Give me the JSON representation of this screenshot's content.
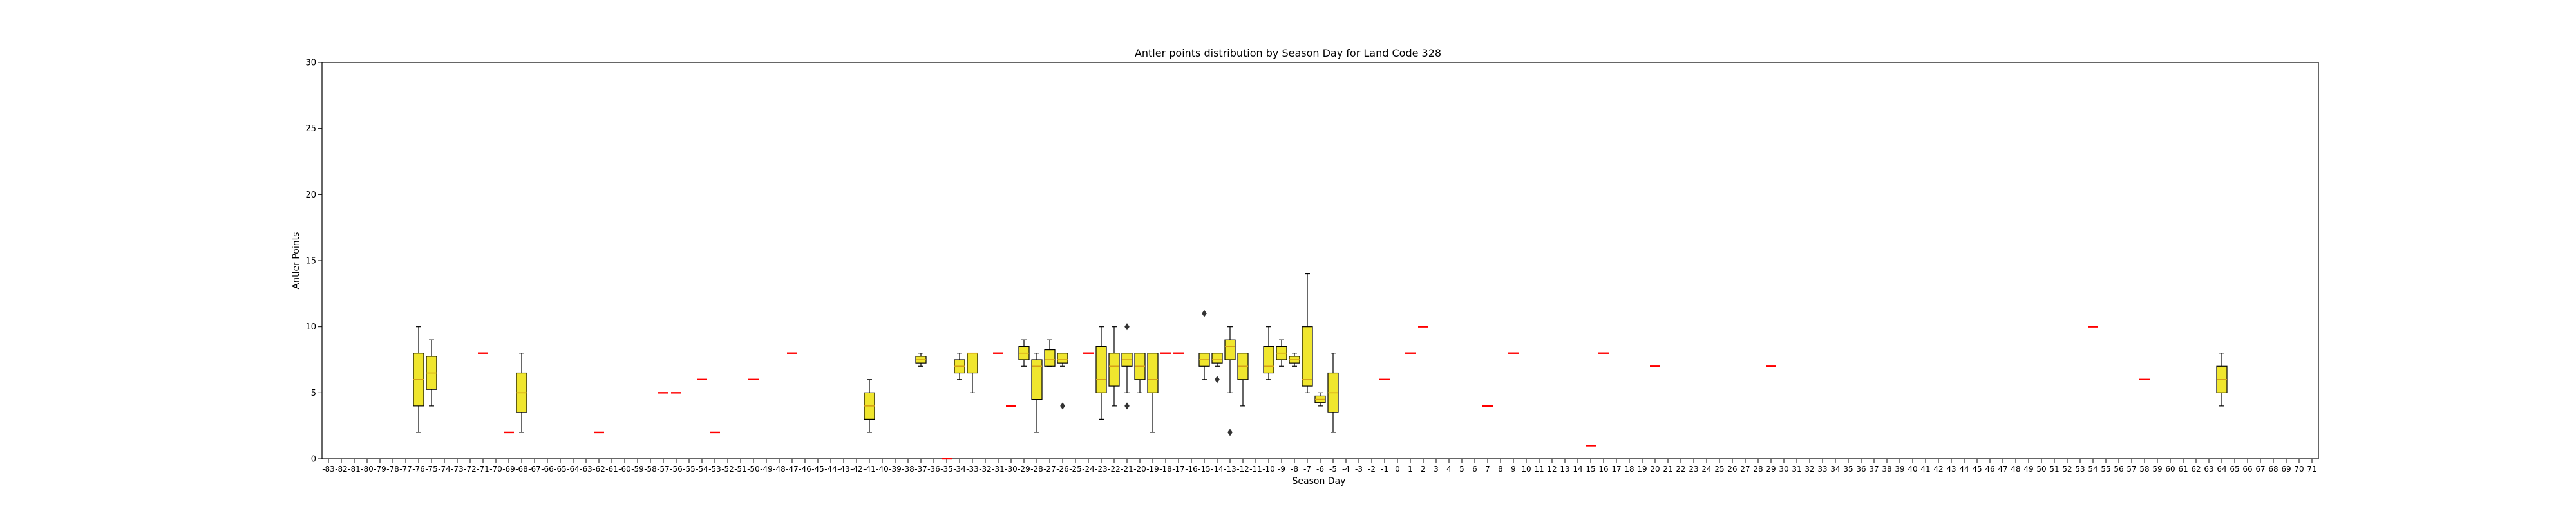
{
  "chart_data": {
    "type": "box",
    "title": "Antler points distribution by Season Day for Land Code 328",
    "xlabel": "Season Day",
    "ylabel": "Antler Points",
    "ylim": [
      0,
      30
    ],
    "yticks": [
      0,
      5,
      10,
      15,
      20,
      25,
      30
    ],
    "x_categories": [
      -83,
      -82,
      -81,
      -80,
      -79,
      -78,
      -77,
      -76,
      -75,
      -74,
      -73,
      -72,
      -71,
      -70,
      -69,
      -68,
      -67,
      -66,
      -65,
      -64,
      -63,
      -62,
      -61,
      -60,
      -59,
      -58,
      -57,
      -56,
      -55,
      -54,
      -53,
      -52,
      -51,
      -50,
      -49,
      -48,
      -47,
      -46,
      -45,
      -44,
      -43,
      -42,
      -41,
      -40,
      -39,
      -38,
      -37,
      -36,
      -35,
      -34,
      -33,
      -32,
      -31,
      -30,
      -29,
      -28,
      -27,
      -26,
      -25,
      -24,
      -23,
      -22,
      -21,
      -20,
      -19,
      -18,
      -17,
      -16,
      -15,
      -14,
      -13,
      -12,
      -11,
      -10,
      -9,
      -8,
      -7,
      -6,
      -5,
      -4,
      -3,
      -2,
      -1,
      0,
      1,
      2,
      3,
      4,
      5,
      6,
      7,
      8,
      9,
      10,
      11,
      12,
      13,
      14,
      15,
      16,
      17,
      18,
      19,
      20,
      21,
      22,
      23,
      24,
      25,
      26,
      27,
      28,
      29,
      30,
      31,
      32,
      33,
      34,
      35,
      36,
      37,
      38,
      39,
      40,
      41,
      42,
      43,
      44,
      45,
      46,
      47,
      48,
      49,
      50,
      51,
      52,
      53,
      54,
      55,
      56,
      57,
      58,
      59,
      60,
      61,
      62,
      63,
      64,
      65,
      66,
      67,
      68,
      69,
      70,
      71
    ],
    "box_color": "#f0e62e",
    "median_color": "#d4a017",
    "single_color": "#ff0000",
    "grid": false,
    "boxes": [
      {
        "day": -76,
        "whislo": 2,
        "q1": 4,
        "med": 6,
        "q3": 8,
        "whishi": 10,
        "fliers": []
      },
      {
        "day": -75,
        "whislo": 4,
        "q1": 5.25,
        "med": 6.5,
        "q3": 7.75,
        "whishi": 9,
        "fliers": []
      },
      {
        "day": -68,
        "whislo": 2,
        "q1": 3.5,
        "med": 5,
        "q3": 6.5,
        "whishi": 8,
        "fliers": []
      },
      {
        "day": -41,
        "whislo": 2,
        "q1": 3,
        "med": 4,
        "q3": 5,
        "whishi": 6,
        "fliers": []
      },
      {
        "day": -37,
        "whislo": 7,
        "q1": 7.25,
        "med": 7.5,
        "q3": 7.75,
        "whishi": 8,
        "fliers": []
      },
      {
        "day": -34,
        "whislo": 6,
        "q1": 6.5,
        "med": 7,
        "q3": 7.5,
        "whishi": 8,
        "fliers": []
      },
      {
        "day": -33,
        "whislo": 5,
        "q1": 6.5,
        "med": 8,
        "q3": 8,
        "whishi": 8,
        "fliers": []
      },
      {
        "day": -29,
        "whislo": 7,
        "q1": 7.5,
        "med": 8,
        "q3": 8.5,
        "whishi": 9,
        "fliers": []
      },
      {
        "day": -28,
        "whislo": 2,
        "q1": 4.5,
        "med": 7,
        "q3": 7.5,
        "whishi": 8,
        "fliers": []
      },
      {
        "day": -27,
        "whislo": 7,
        "q1": 7,
        "med": 7.5,
        "q3": 8.25,
        "whishi": 9,
        "fliers": []
      },
      {
        "day": -26,
        "whislo": 7,
        "q1": 7.25,
        "med": 7.5,
        "q3": 8,
        "whishi": 8,
        "fliers": [
          4
        ]
      },
      {
        "day": -23,
        "whislo": 3,
        "q1": 5,
        "med": 6,
        "q3": 8.5,
        "whishi": 10,
        "fliers": []
      },
      {
        "day": -22,
        "whislo": 4,
        "q1": 5.5,
        "med": 7,
        "q3": 8,
        "whishi": 10,
        "fliers": []
      },
      {
        "day": -21,
        "whislo": 5,
        "q1": 7,
        "med": 7.5,
        "q3": 8,
        "whishi": 8,
        "fliers": [
          10,
          4
        ]
      },
      {
        "day": -20,
        "whislo": 5,
        "q1": 6,
        "med": 7,
        "q3": 8,
        "whishi": 8,
        "fliers": []
      },
      {
        "day": -19,
        "whislo": 2,
        "q1": 5,
        "med": 6,
        "q3": 8,
        "whishi": 8,
        "fliers": []
      },
      {
        "day": -15,
        "whislo": 6,
        "q1": 7,
        "med": 7.5,
        "q3": 8,
        "whishi": 8,
        "fliers": [
          11
        ]
      },
      {
        "day": -14,
        "whislo": 7,
        "q1": 7.25,
        "med": 7.5,
        "q3": 8,
        "whishi": 8,
        "fliers": [
          6
        ]
      },
      {
        "day": -13,
        "whislo": 5,
        "q1": 7.5,
        "med": 8.5,
        "q3": 9,
        "whishi": 10,
        "fliers": [
          2
        ]
      },
      {
        "day": -12,
        "whislo": 4,
        "q1": 6,
        "med": 7,
        "q3": 8,
        "whishi": 8,
        "fliers": []
      },
      {
        "day": -10,
        "whislo": 6,
        "q1": 6.5,
        "med": 7,
        "q3": 8.5,
        "whishi": 10,
        "fliers": []
      },
      {
        "day": -9,
        "whislo": 7,
        "q1": 7.5,
        "med": 8,
        "q3": 8.5,
        "whishi": 9,
        "fliers": []
      },
      {
        "day": -8,
        "whislo": 7,
        "q1": 7.25,
        "med": 7.5,
        "q3": 7.75,
        "whishi": 8,
        "fliers": []
      },
      {
        "day": -7,
        "whislo": 5,
        "q1": 5.5,
        "med": 6,
        "q3": 10,
        "whishi": 14,
        "fliers": []
      },
      {
        "day": -6,
        "whislo": 4,
        "q1": 4.25,
        "med": 4.5,
        "q3": 4.75,
        "whishi": 5,
        "fliers": []
      },
      {
        "day": -5,
        "whislo": 2,
        "q1": 3.5,
        "med": 5,
        "q3": 6.5,
        "whishi": 8,
        "fliers": []
      },
      {
        "day": 64,
        "whislo": 4,
        "q1": 5,
        "med": 6,
        "q3": 7,
        "whishi": 8,
        "fliers": []
      }
    ],
    "single_values": [
      {
        "day": -71,
        "value": 8
      },
      {
        "day": -69,
        "value": 2
      },
      {
        "day": -62,
        "value": 2
      },
      {
        "day": -57,
        "value": 5
      },
      {
        "day": -56,
        "value": 5
      },
      {
        "day": -54,
        "value": 6
      },
      {
        "day": -53,
        "value": 2
      },
      {
        "day": -50,
        "value": 6
      },
      {
        "day": -47,
        "value": 8
      },
      {
        "day": -35,
        "value": 0
      },
      {
        "day": -31,
        "value": 8
      },
      {
        "day": -30,
        "value": 4
      },
      {
        "day": -24,
        "value": 8
      },
      {
        "day": -18,
        "value": 8
      },
      {
        "day": -17,
        "value": 8
      },
      {
        "day": -1,
        "value": 6
      },
      {
        "day": 1,
        "value": 8
      },
      {
        "day": 2,
        "value": 10
      },
      {
        "day": 7,
        "value": 4
      },
      {
        "day": 9,
        "value": 8
      },
      {
        "day": 15,
        "value": 1
      },
      {
        "day": 16,
        "value": 8
      },
      {
        "day": 20,
        "value": 7
      },
      {
        "day": 29,
        "value": 7
      },
      {
        "day": 54,
        "value": 10
      },
      {
        "day": 58,
        "value": 6
      }
    ]
  }
}
